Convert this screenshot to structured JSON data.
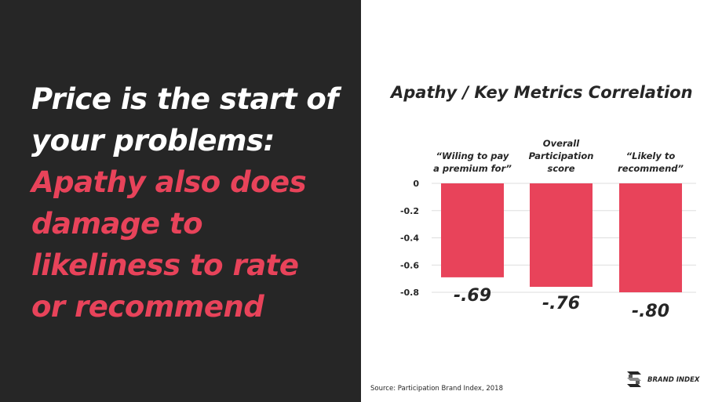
{
  "headline": {
    "white_lines": [
      "Price is the start of",
      "your problems:"
    ],
    "accent_lines": [
      "Apathy also does",
      "damage to",
      "likeliness to rate",
      "or recommend"
    ]
  },
  "colors": {
    "left_bg": "#262626",
    "accent": "#e8435a",
    "text_dark": "#262626",
    "bar": "#e8435a"
  },
  "chart_data": {
    "type": "bar",
    "title": "Apathy / Key Metrics Correlation",
    "categories": [
      [
        "“Wiling to pay",
        "a premium for”"
      ],
      [
        "Overall",
        "Participation",
        "score"
      ],
      [
        "“Likely to",
        "recommend”"
      ]
    ],
    "values": [
      -0.69,
      -0.76,
      -0.8
    ],
    "value_labels": [
      "-.69",
      "-.76",
      "-.80"
    ],
    "yticks": [
      "0",
      "-0.2",
      "-0.4",
      "-0.6",
      "-0.8"
    ],
    "ylim": [
      -0.8,
      0
    ],
    "grid": true
  },
  "source": "Source: Participation Brand Index, 2018",
  "brand": {
    "name": "BRAND INDEX",
    "logo_icon": "brand-index-logo-icon"
  }
}
